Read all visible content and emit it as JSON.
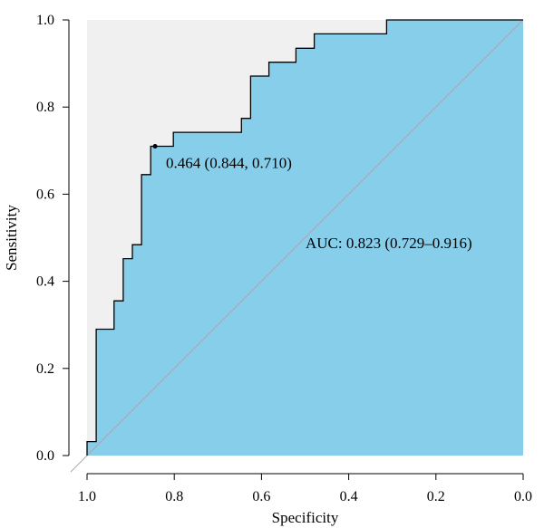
{
  "chart_data": {
    "type": "line",
    "subtype": "roc-curve",
    "xlabel": "Specificity",
    "ylabel": "Sensitivity",
    "x_reversed": true,
    "xlim": [
      1.0,
      0.0
    ],
    "ylim": [
      0.0,
      1.0
    ],
    "x_ticks": [
      "1.0",
      "0.8",
      "0.6",
      "0.4",
      "0.2",
      "0.0"
    ],
    "y_ticks": [
      "0.0",
      "0.2",
      "0.4",
      "0.6",
      "0.8",
      "1.0"
    ],
    "grid": false,
    "legend": "none",
    "colors": {
      "auc_fill": "#87ceeb",
      "upper_fill": "#f0f0f0",
      "curve": "#000000",
      "diagonal": "#a9a9a9"
    },
    "roc_points": {
      "specificity": [
        1.0,
        1.0,
        0.979,
        0.979,
        0.938,
        0.938,
        0.917,
        0.917,
        0.896,
        0.896,
        0.875,
        0.875,
        0.854,
        0.854,
        0.833,
        0.833,
        0.802,
        0.802,
        0.646,
        0.646,
        0.625,
        0.625,
        0.583,
        0.583,
        0.521,
        0.521,
        0.479,
        0.479,
        0.313,
        0.313,
        0.0
      ],
      "sensitivity": [
        0.0,
        0.032,
        0.032,
        0.29,
        0.29,
        0.355,
        0.355,
        0.452,
        0.452,
        0.484,
        0.484,
        0.645,
        0.645,
        0.71,
        0.71,
        0.71,
        0.71,
        0.742,
        0.742,
        0.774,
        0.774,
        0.871,
        0.871,
        0.903,
        0.903,
        0.935,
        0.935,
        0.968,
        0.968,
        1.0,
        1.0
      ]
    },
    "best_threshold": {
      "label": "0.464 (0.844, 0.710)",
      "specificity": 0.844,
      "sensitivity": 0.71
    },
    "auc_label": "AUC: 0.823 (0.729–0.916)"
  }
}
